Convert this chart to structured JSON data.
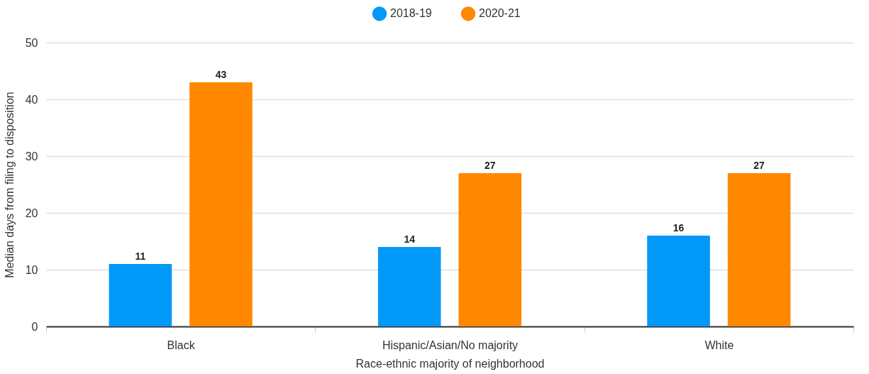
{
  "chart_data": {
    "type": "bar",
    "categories": [
      "Black",
      "Hispanic/Asian/No majority",
      "White"
    ],
    "series": [
      {
        "name": "2018-19",
        "color": "#0099f8",
        "values": [
          11,
          14,
          16
        ]
      },
      {
        "name": "2020-21",
        "color": "#ff8800",
        "values": [
          43,
          27,
          27
        ]
      }
    ],
    "xlabel": "Race-ethnic majority of neighborhood",
    "ylabel": "Median days from filing to disposition",
    "ylim": [
      0,
      50
    ],
    "yticks": [
      0,
      10,
      20,
      30,
      40,
      50
    ],
    "grid": "y",
    "legend": "top",
    "data_labels": true
  }
}
